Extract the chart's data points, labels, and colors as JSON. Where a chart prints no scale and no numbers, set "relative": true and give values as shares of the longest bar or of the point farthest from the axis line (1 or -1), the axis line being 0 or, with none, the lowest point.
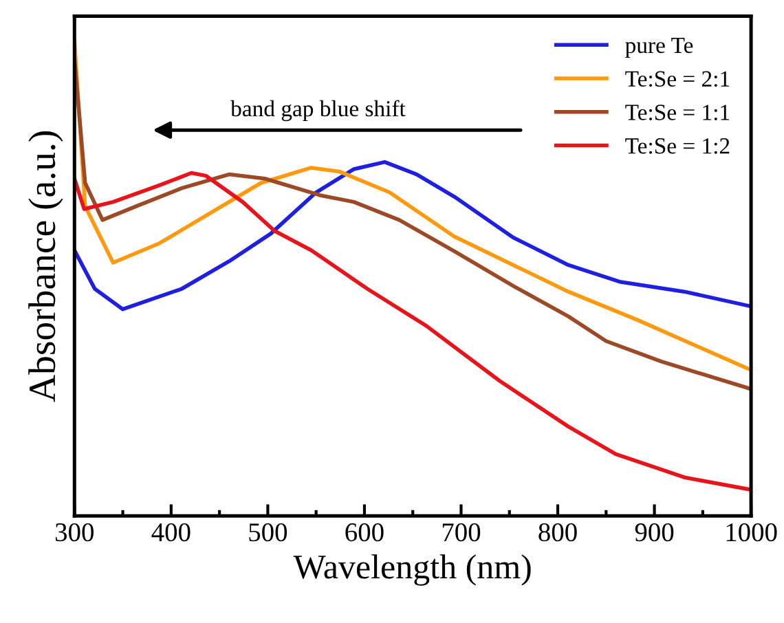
{
  "chart_data": {
    "type": "line",
    "relative": true,
    "xlabel": "Wavelength (nm)",
    "ylabel": "Absorbance (a.u.)",
    "xlim": [
      300,
      1000
    ],
    "xticks": [
      300,
      400,
      500,
      600,
      700,
      800,
      900,
      1000
    ],
    "legend": "top right",
    "grid": false,
    "tick_labels": "x",
    "annotations": [
      "band gap blue shift"
    ],
    "series": [
      {
        "name": "pure Te",
        "color": "#1f1fe0",
        "x": [
          300,
          321,
          350,
          411,
          460,
          503,
          550,
          589,
          621,
          654,
          693,
          754,
          811,
          864,
          931,
          1000
        ],
        "values": [
          0.559,
          0.478,
          0.435,
          0.478,
          0.536,
          0.594,
          0.681,
          0.73,
          0.745,
          0.719,
          0.672,
          0.586,
          0.528,
          0.493,
          0.472,
          0.441
        ]
      },
      {
        "name": "Te:Se = 2:1",
        "color": "#ff9a10",
        "x": [
          300,
          311,
          340,
          388,
          436,
          493,
          545,
          574,
          626,
          693,
          754,
          811,
          883,
          1000
        ],
        "values": [
          1.0,
          0.652,
          0.533,
          0.574,
          0.632,
          0.701,
          0.733,
          0.725,
          0.681,
          0.588,
          0.528,
          0.472,
          0.412,
          0.307
        ]
      },
      {
        "name": "Te:Se = 1:1",
        "color": "#9c4a25",
        "x": [
          300,
          311,
          329,
          364,
          411,
          460,
          497,
          554,
          589,
          636,
          693,
          754,
          811,
          850,
          907,
          1000
        ],
        "values": [
          0.962,
          0.701,
          0.623,
          0.652,
          0.69,
          0.719,
          0.71,
          0.675,
          0.661,
          0.623,
          0.557,
          0.484,
          0.42,
          0.368,
          0.325,
          0.267
        ]
      },
      {
        "name": "Te:Se = 1:2",
        "color": "#e8141c",
        "x": [
          300,
          310,
          340,
          388,
          421,
          436,
          474,
          507,
          545,
          603,
          664,
          721,
          740,
          811,
          860,
          931,
          1000
        ],
        "values": [
          0.71,
          0.646,
          0.661,
          0.696,
          0.722,
          0.716,
          0.661,
          0.6,
          0.559,
          0.478,
          0.4,
          0.313,
          0.284,
          0.188,
          0.13,
          0.081,
          0.055
        ]
      }
    ]
  }
}
